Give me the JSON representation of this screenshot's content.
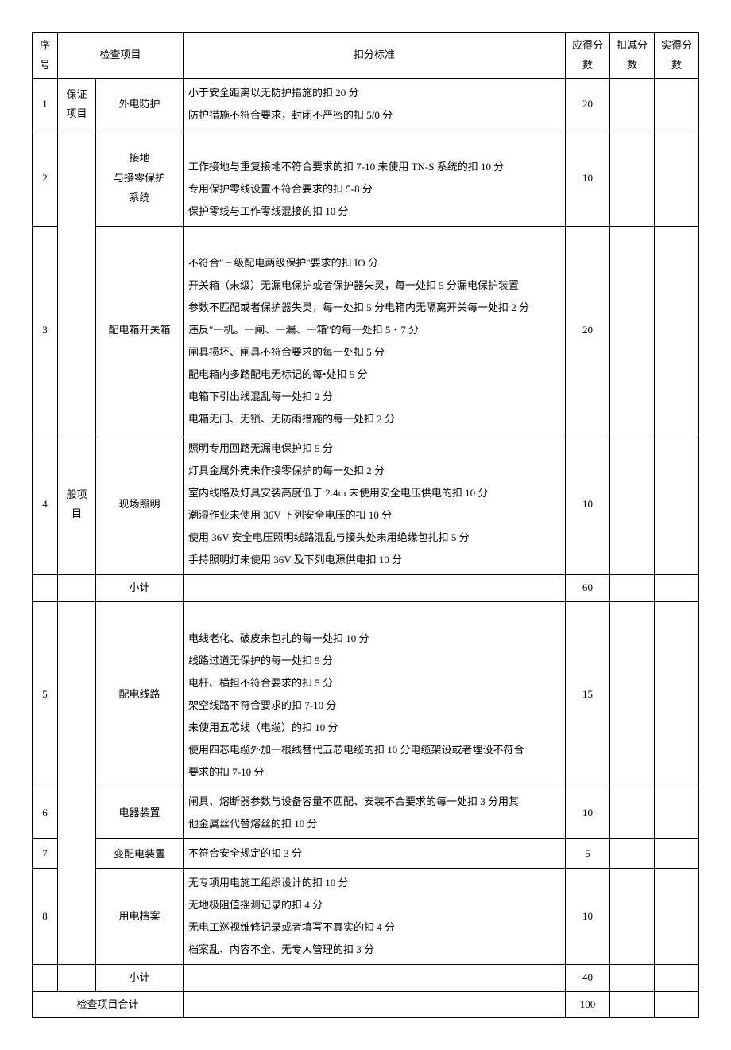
{
  "header": {
    "seq": "序号",
    "check_item": "检查项目",
    "criteria": "扣分标准",
    "should_score": "应得分数",
    "deduct_score": "扣减分数",
    "actual_score": "实得分数"
  },
  "categories": {
    "guarantee": "保证项目",
    "general": "般项目"
  },
  "rows": [
    {
      "seq": "1",
      "item": "外电防护",
      "criteria": [
        "小于安全距离以无防护措施的扣 20 分",
        "防护措施不符合要求，封闭不严密的扣 5/0 分"
      ],
      "score": "20"
    },
    {
      "seq": "2",
      "item": "接地\n与接零保护\n系统",
      "criteria": [
        "",
        "工作接地与重复接地不符合要求的扣 7-10 未使用 TN-S 系统的扣 10 分",
        "专用保护零线设置不符合要求的扣 5-8 分",
        "保护零线与工作零线混接的扣 10 分"
      ],
      "score": "10"
    },
    {
      "seq": "3",
      "item": "配电箱开关箱",
      "criteria": [
        "",
        "不符合\"三级配电两级保护\"要求的扣 IO 分",
        "开关箱（未级）无漏电保护或者保护器失灵，每一处扣 5 分漏电保护装置",
        "参数不匹配或者保护器失灵，每一处扣 5 分电箱内无隔离开关每一处扣 2 分",
        "违反\"一机。一闸、一漏、一箱\"的每一处扣 5・7 分",
        "闸具损坏、闸具不符合要求的每一处扣 5 分",
        "配电箱内多路配电无标记的每•处扣 5 分",
        "电箱下引出线混乱每一处扣 2 分",
        "电箱无门、无锁、无防雨措施的每一处扣 2 分"
      ],
      "score": "20"
    },
    {
      "seq": "4",
      "item": "现场照明",
      "criteria": [
        "照明专用回路无漏电保护扣 5 分",
        "灯具金属外壳未作接零保护的每一处扣 2 分",
        "室内线路及灯具安装高度低于 2.4m 未使用安全电压供电的扣 10 分",
        "潮湿作业未使用 36V 下列安全电压的扣 10 分",
        "使用 36V 安全电压照明线路混乱与接头处未用绝缘包扎扣 5 分",
        "手持照明灯未使用 36V 及下列电源供电扣 10 分"
      ],
      "score": "10"
    }
  ],
  "subtotal1": {
    "label": "小计",
    "score": "60"
  },
  "rows2": [
    {
      "seq": "5",
      "item": "配电线路",
      "criteria": [
        "",
        "电线老化、破皮未包扎的每一处扣 10 分",
        "线路过道无保护的每一处扣 5 分",
        "电杆、横担不符合要求的扣 5 分",
        "架空线路不符合要求的扣 7-10 分",
        "未使用五芯线（电缆）的扣 10 分",
        "使用四芯电缆外加一根线替代五芯电缆的扣 10 分电缆架设或者埋设不符合",
        "要求的扣 7-10 分"
      ],
      "score": "15"
    },
    {
      "seq": "6",
      "item": "电器装置",
      "criteria": [
        "闸具、熔断器参数与设备容量不匹配、安装不合要求的每一处扣 3 分用其",
        "他金属丝代替熔丝的扣 10 分"
      ],
      "score": "10"
    },
    {
      "seq": "7",
      "item": "变配电装置",
      "criteria": [
        "不符合安全规定的扣 3 分"
      ],
      "score": "5"
    },
    {
      "seq": "8",
      "item": "用电档案",
      "criteria": [
        "无专项用电施工组织设计的扣 10 分",
        "无地极阻值摇测记录的扣 4 分",
        "无电工巡视维修记录或者填写不真实的扣 4 分",
        "档案乱、内容不全、无专人管理的扣 3 分"
      ],
      "score": "10"
    }
  ],
  "subtotal2": {
    "label": "小计",
    "score": "40"
  },
  "total": {
    "label": "检查项目合计",
    "score": "100"
  }
}
